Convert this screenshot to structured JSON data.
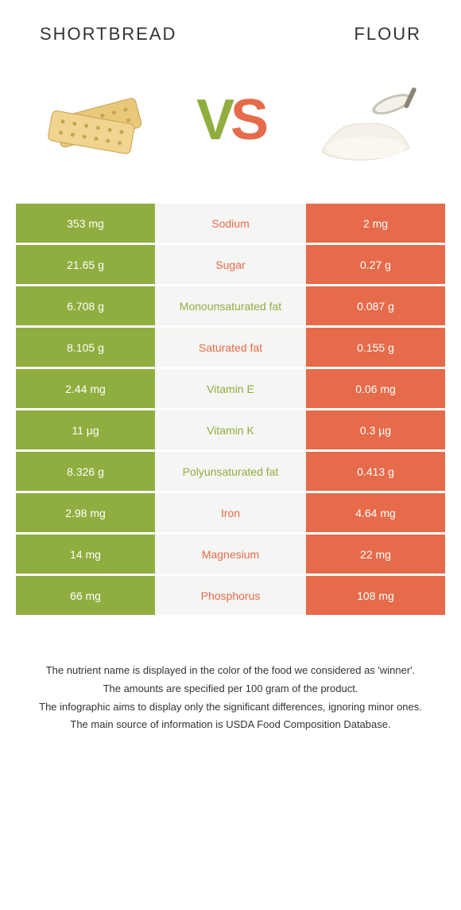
{
  "header": {
    "left_title": "SHORTBREAD",
    "right_title": "FLOUR",
    "vs_v": "V",
    "vs_s": "S"
  },
  "colors": {
    "green": "#8fae3f",
    "orange": "#e56b4a",
    "mid_bg": "#f5f5f3",
    "white": "#ffffff",
    "text": "#333333"
  },
  "icons": {
    "left": "shortbread",
    "right": "flour"
  },
  "rows": [
    {
      "left": "353 mg",
      "name": "Sodium",
      "winner": "orange",
      "right": "2 mg"
    },
    {
      "left": "21.65 g",
      "name": "Sugar",
      "winner": "orange",
      "right": "0.27 g"
    },
    {
      "left": "6.708 g",
      "name": "Monounsaturated fat",
      "winner": "green",
      "right": "0.087 g"
    },
    {
      "left": "8.105 g",
      "name": "Saturated fat",
      "winner": "orange",
      "right": "0.155 g"
    },
    {
      "left": "2.44 mg",
      "name": "Vitamin E",
      "winner": "green",
      "right": "0.06 mg"
    },
    {
      "left": "11 µg",
      "name": "Vitamin K",
      "winner": "green",
      "right": "0.3 µg"
    },
    {
      "left": "8.326 g",
      "name": "Polyunsaturated fat",
      "winner": "green",
      "right": "0.413 g"
    },
    {
      "left": "2.98 mg",
      "name": "Iron",
      "winner": "orange",
      "right": "4.64 mg"
    },
    {
      "left": "14 mg",
      "name": "Magnesium",
      "winner": "orange",
      "right": "22 mg"
    },
    {
      "left": "66 mg",
      "name": "Phosphorus",
      "winner": "orange",
      "right": "108 mg"
    }
  ],
  "footer": {
    "line1": "The nutrient name is displayed in the color of the food we considered as 'winner'.",
    "line2": "The amounts are specified per 100 gram of the product.",
    "line3": "The infographic aims to display only the significant differences, ignoring minor ones.",
    "line4": "The main source of information is USDA Food Composition Database."
  }
}
